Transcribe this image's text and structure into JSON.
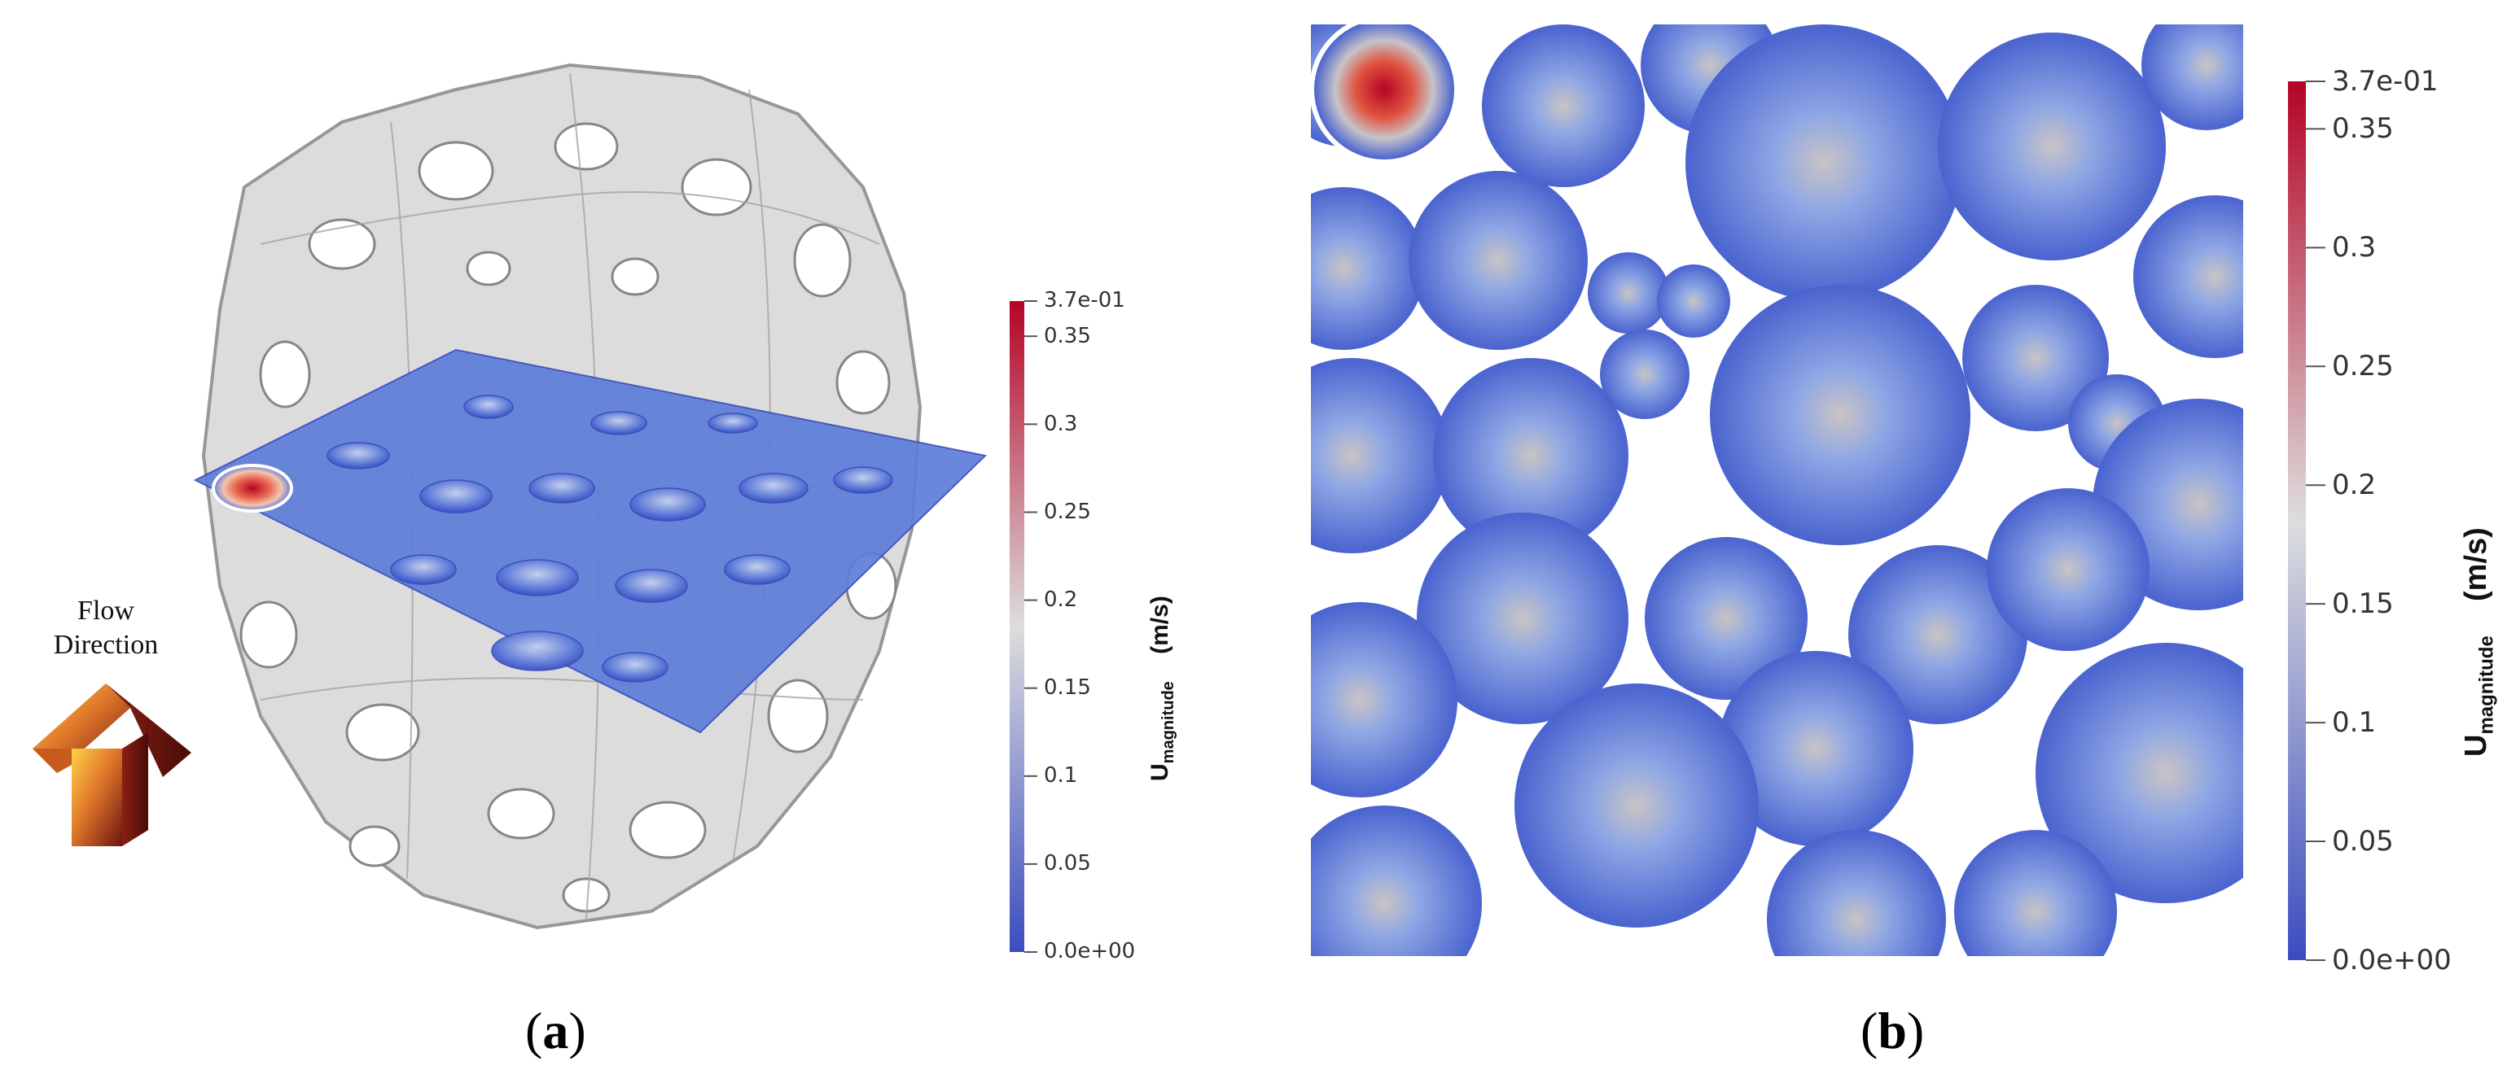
{
  "panel_a": {
    "caption_label": "a",
    "flow_label_line1": "Flow",
    "flow_label_line2": "Direction",
    "colorbar": {
      "title_main": "U",
      "title_sub": "magnitude",
      "title_unit": "(m/s)",
      "max_label": "3.7e-01",
      "min_label": "0.0e+00",
      "ticks": [
        "0.35",
        "0.3",
        "0.25",
        "0.2",
        "0.15",
        "0.1",
        "0.05"
      ]
    }
  },
  "panel_b": {
    "caption_label": "b",
    "colorbar": {
      "title_main": "U",
      "title_sub": "magnitude",
      "title_unit": "(m/s)",
      "max_label": "3.7e-01",
      "min_label": "0.0e+00",
      "ticks": [
        "0.35",
        "0.3",
        "0.25",
        "0.2",
        "0.15",
        "0.1",
        "0.05"
      ]
    }
  },
  "colormap": {
    "low": "#3b4cc0",
    "mid": "#dddddd",
    "high": "#b40426"
  }
}
